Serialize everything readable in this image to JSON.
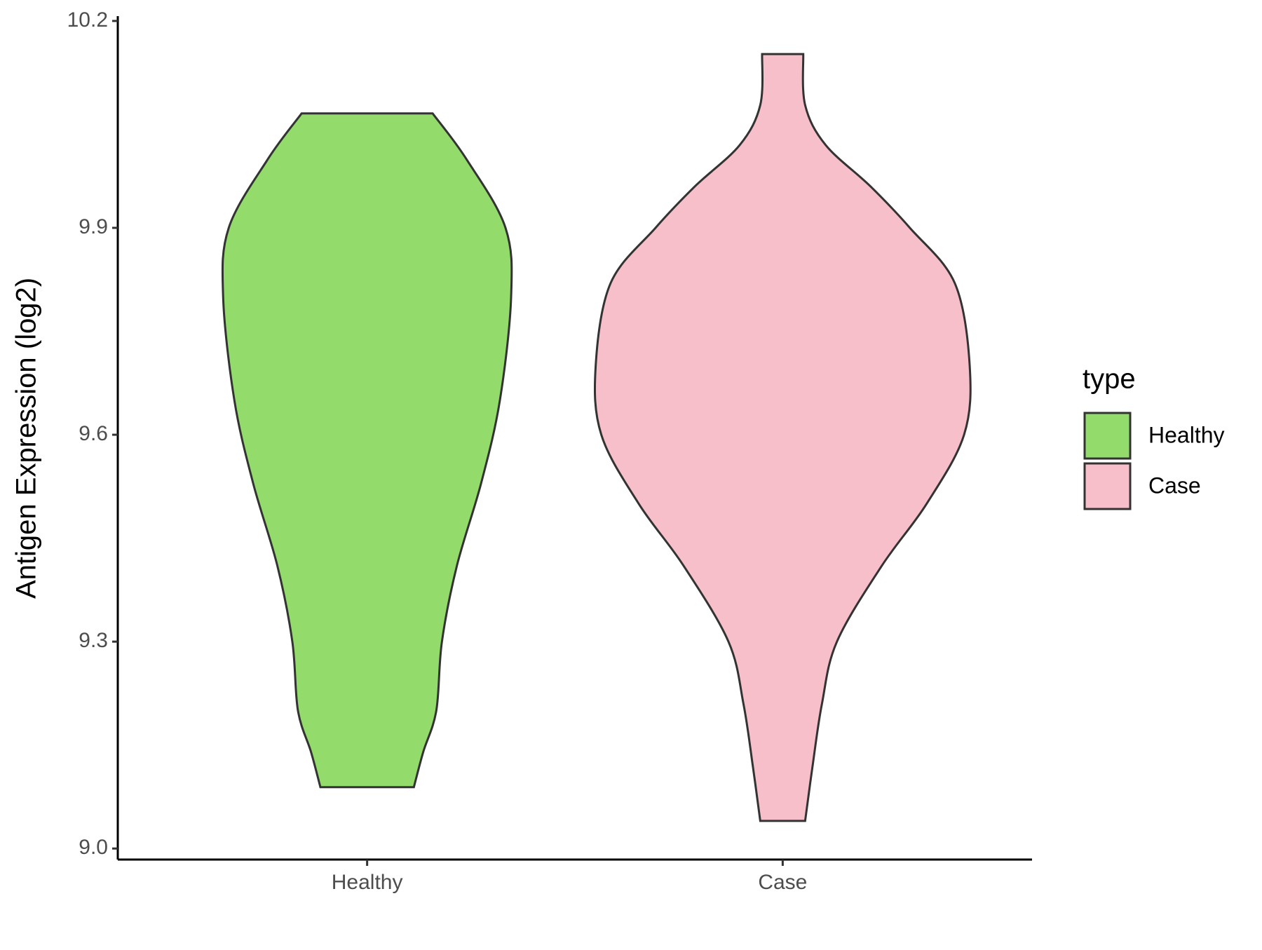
{
  "chart_data": {
    "type": "violin",
    "y_label": "Antigen Expression (log2)",
    "categories": [
      "Healthy",
      "Case"
    ],
    "legend_title": "type",
    "legend_position": "right",
    "ylim": [
      8.984,
      10.207
    ],
    "yticks": [
      {
        "value": 9,
        "label": "9.0"
      },
      9.3,
      9.6,
      9.9,
      10.2
    ],
    "series": [
      {
        "name": "Healthy",
        "color": "#93dc6b",
        "y": [
          9.089,
          9.14,
          9.2,
          9.3,
          9.41,
          9.53,
          9.65,
          9.8,
          9.9,
          10.0,
          10.066
        ],
        "width": [
          0.25,
          0.3,
          0.37,
          0.4,
          0.48,
          0.61,
          0.71,
          0.77,
          0.74,
          0.53,
          0.35
        ]
      },
      {
        "name": "Case",
        "color": "#f7bfca",
        "y": [
          9.04,
          9.12,
          9.21,
          9.3,
          9.41,
          9.5,
          9.6,
          9.7,
          9.82,
          9.9,
          9.96,
          10.02,
          10.078,
          10.152
        ],
        "width": [
          0.12,
          0.16,
          0.21,
          0.29,
          0.53,
          0.77,
          0.97,
          1.0,
          0.92,
          0.68,
          0.47,
          0.23,
          0.12,
          0.11
        ]
      }
    ]
  }
}
